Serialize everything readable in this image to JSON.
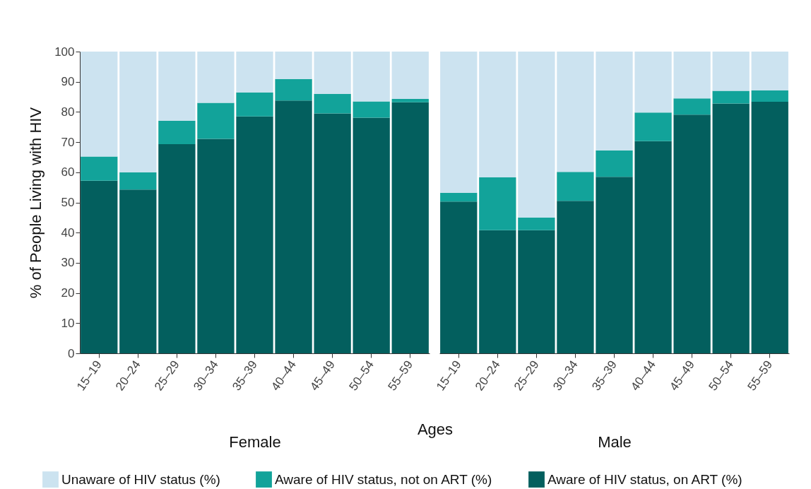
{
  "chart_data": [
    {
      "type": "bar",
      "title": "Female",
      "xlabel": "Ages",
      "ylabel": "% of People Living with HIV",
      "stacked": true,
      "legend": "bottom",
      "grid": false,
      "categories": [
        "15–19",
        "20–24",
        "25–29",
        "30–34",
        "35–39",
        "40–44",
        "45–49",
        "50–54",
        "55–59"
      ],
      "ylim": [
        0,
        100
      ],
      "yticks": [
        0,
        10,
        20,
        30,
        40,
        50,
        60,
        70,
        80,
        90,
        100
      ],
      "series": [
        {
          "name": "Aware of HIV status, on ART (%)",
          "color": "#035f5e",
          "values": [
            57.2,
            54.3,
            69.3,
            71.1,
            78.5,
            83.8,
            79.5,
            78.1,
            83.2
          ]
        },
        {
          "name": "Aware of HIV status, not on ART (%)",
          "color": "#12a39a",
          "values": [
            8.0,
            5.7,
            7.8,
            11.9,
            8.0,
            7.1,
            6.5,
            5.4,
            1.1
          ]
        },
        {
          "name": "Unaware of HIV status (%)",
          "color": "#cce3f0",
          "values": [
            34.8,
            40.0,
            22.9,
            17.0,
            13.5,
            9.1,
            14.0,
            16.5,
            15.7
          ]
        }
      ]
    },
    {
      "type": "bar",
      "title": "Male",
      "stacked": true,
      "grid": false,
      "tick_labels": "x",
      "categories": [
        "15–19",
        "20–24",
        "25–29",
        "30–34",
        "35–39",
        "40–44",
        "45–49",
        "50–54",
        "55–59"
      ],
      "ylim": [
        0,
        100
      ],
      "yticks": [
        0,
        10,
        20,
        30,
        40,
        50,
        60,
        70,
        80,
        90,
        100
      ],
      "series": [
        {
          "name": "Aware of HIV status, on ART (%)",
          "color": "#035f5e",
          "values": [
            50.3,
            40.8,
            40.8,
            50.5,
            58.5,
            70.3,
            79.1,
            82.8,
            83.4
          ]
        },
        {
          "name": "Aware of HIV status, not on ART (%)",
          "color": "#12a39a",
          "values": [
            2.9,
            17.5,
            4.2,
            9.6,
            8.8,
            9.5,
            5.4,
            4.2,
            3.8
          ]
        },
        {
          "name": "Unaware of HIV status (%)",
          "color": "#cce3f0",
          "values": [
            46.8,
            41.7,
            55.0,
            39.9,
            32.7,
            20.2,
            15.5,
            13.0,
            12.8
          ]
        }
      ]
    }
  ]
}
